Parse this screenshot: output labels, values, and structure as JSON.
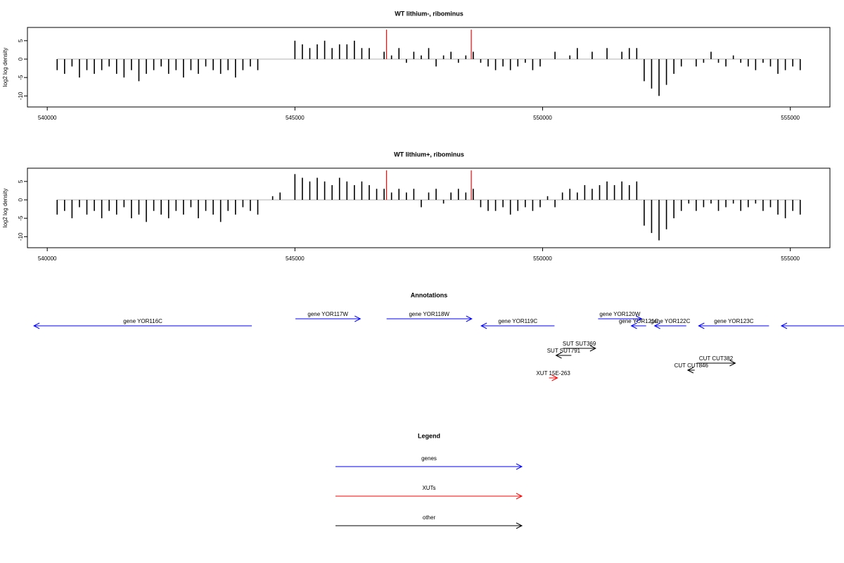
{
  "chart_data": [
    {
      "type": "bar",
      "title": "WT lithium-, ribominus",
      "y_label": "log2 log density",
      "xlim": [
        539600,
        555800
      ],
      "xticks": [
        540000,
        545000,
        550000,
        555000
      ],
      "ylim": [
        -13,
        8.6
      ],
      "yticks": [
        5,
        0,
        -5,
        -10
      ],
      "x": [
        540200,
        540350,
        540500,
        540650,
        540800,
        540950,
        541100,
        541250,
        541400,
        541550,
        541700,
        541850,
        542000,
        542150,
        542300,
        542450,
        542600,
        542750,
        542900,
        543050,
        543200,
        543350,
        543500,
        543650,
        543800,
        543950,
        544100,
        544250,
        544400,
        544550,
        544700,
        544850,
        545000,
        545150,
        545300,
        545450,
        545600,
        545750,
        545900,
        546050,
        546200,
        546350,
        546500,
        546650,
        546800,
        546950,
        547100,
        547250,
        547400,
        547550,
        547700,
        547850,
        548000,
        548150,
        548300,
        548450,
        548600,
        548750,
        548900,
        549050,
        549200,
        549350,
        549500,
        549650,
        549800,
        549950,
        550100,
        550250,
        550400,
        550550,
        550700,
        550850,
        551000,
        551150,
        551300,
        551450,
        551600,
        551750,
        551900,
        552050,
        552200,
        552350,
        552500,
        552650,
        552800,
        552950,
        553100,
        553250,
        553400,
        553550,
        553700,
        553850,
        554000,
        554150,
        554300,
        554450,
        554600,
        554750,
        554900,
        555050,
        555200
      ],
      "series": [
        {
          "color": "#000000",
          "values": [
            -3,
            -4,
            -2,
            -5,
            -3,
            -4,
            -3,
            -2,
            -4,
            -5,
            -3,
            -6,
            -4,
            -3,
            -2,
            -4,
            -3,
            -5,
            -3,
            -4,
            -2,
            -3,
            -4,
            -3,
            -5,
            -3,
            -2,
            -3,
            0,
            0,
            0,
            0,
            5,
            4,
            3,
            4,
            5,
            3,
            4,
            4,
            5,
            3,
            3,
            0,
            2,
            1,
            3,
            -1,
            2,
            1,
            3,
            -2,
            1,
            2,
            -1,
            1,
            2,
            -1,
            -2,
            -3,
            -2,
            -3,
            -2,
            -1,
            -3,
            -2,
            0,
            2,
            0,
            1,
            3,
            0,
            2,
            0,
            3,
            0,
            2,
            3,
            3,
            -6,
            -8,
            -10,
            -7,
            -4,
            -2,
            0,
            -2,
            -1,
            2,
            -1,
            -2,
            1,
            -1,
            -2,
            -3,
            -1,
            -2,
            -4,
            -3,
            -2,
            -3
          ]
        }
      ],
      "highlights": {
        "color": "#ff0000",
        "x": [
          546850,
          548560
        ],
        "values": [
          8,
          8
        ]
      }
    },
    {
      "type": "bar",
      "title": "WT lithium+, ribominus",
      "y_label": "log2 log density",
      "xlim": [
        539600,
        555800
      ],
      "xticks": [
        540000,
        545000,
        550000,
        555000
      ],
      "ylim": [
        -13,
        8.6
      ],
      "yticks": [
        5,
        0,
        -5,
        -10
      ],
      "x": [
        540200,
        540350,
        540500,
        540650,
        540800,
        540950,
        541100,
        541250,
        541400,
        541550,
        541700,
        541850,
        542000,
        542150,
        542300,
        542450,
        542600,
        542750,
        542900,
        543050,
        543200,
        543350,
        543500,
        543650,
        543800,
        543950,
        544100,
        544250,
        544400,
        544550,
        544700,
        544850,
        545000,
        545150,
        545300,
        545450,
        545600,
        545750,
        545900,
        546050,
        546200,
        546350,
        546500,
        546650,
        546800,
        546950,
        547100,
        547250,
        547400,
        547550,
        547700,
        547850,
        548000,
        548150,
        548300,
        548450,
        548600,
        548750,
        548900,
        549050,
        549200,
        549350,
        549500,
        549650,
        549800,
        549950,
        550100,
        550250,
        550400,
        550550,
        550700,
        550850,
        551000,
        551150,
        551300,
        551450,
        551600,
        551750,
        551900,
        552050,
        552200,
        552350,
        552500,
        552650,
        552800,
        552950,
        553100,
        553250,
        553400,
        553550,
        553700,
        553850,
        554000,
        554150,
        554300,
        554450,
        554600,
        554750,
        554900,
        555050,
        555200
      ],
      "series": [
        {
          "color": "#000000",
          "values": [
            -4,
            -3,
            -5,
            -2,
            -4,
            -3,
            -5,
            -3,
            -4,
            -2,
            -5,
            -4,
            -6,
            -3,
            -4,
            -5,
            -3,
            -4,
            -2,
            -5,
            -3,
            -4,
            -6,
            -3,
            -4,
            -2,
            -3,
            -4,
            0,
            1,
            2,
            0,
            7,
            6,
            5,
            6,
            5,
            4,
            6,
            5,
            4,
            5,
            4,
            3,
            3,
            2,
            3,
            2,
            3,
            -2,
            2,
            3,
            -1,
            2,
            3,
            2,
            3,
            -2,
            -3,
            -3,
            -2,
            -4,
            -3,
            -2,
            -3,
            -2,
            1,
            -2,
            2,
            3,
            2,
            4,
            3,
            4,
            5,
            4,
            5,
            4,
            5,
            -7,
            -9,
            -11,
            -8,
            -5,
            -3,
            -1,
            -3,
            -2,
            -1,
            -3,
            -2,
            -1,
            -3,
            -2,
            -1,
            -3,
            -2,
            -4,
            -5,
            -3,
            -4
          ]
        }
      ],
      "highlights": {
        "color": "#ff0000",
        "x": [
          546850,
          548560
        ],
        "values": [
          8,
          8
        ]
      }
    }
  ],
  "annotations": {
    "title": "Annotations",
    "features": [
      {
        "label": "gene YOR116C",
        "start": 539730,
        "end": 544130,
        "strand": "-",
        "color": "#0000ff"
      },
      {
        "label": "gene YOR117W",
        "start": 545010,
        "end": 546320,
        "strand": "+",
        "color": "#0000ff"
      },
      {
        "label": "gene YOR118W",
        "start": 546850,
        "end": 548570,
        "strand": "+",
        "color": "#0000ff"
      },
      {
        "label": "gene YOR119C",
        "start": 548760,
        "end": 550240,
        "strand": "-",
        "color": "#0000ff"
      },
      {
        "label": "gene YOR120W",
        "start": 551120,
        "end": 552000,
        "strand": "+",
        "color": "#0000ff"
      },
      {
        "label": "gene YOR121C",
        "start": 551790,
        "end": 552090,
        "strand": "-",
        "color": "#0000ff"
      },
      {
        "label": "gene YOR122C",
        "start": 552260,
        "end": 552900,
        "strand": "-",
        "color": "#0000ff"
      },
      {
        "label": "gene YOR123C",
        "start": 553150,
        "end": 554570,
        "strand": "-",
        "color": "#0000ff"
      },
      {
        "start": 554820,
        "end": 556100,
        "strand": "-",
        "color": "#0000ff"
      },
      {
        "label": "SUT SUT369",
        "start": 550410,
        "end": 551070,
        "strand": "+",
        "color": "#000000"
      },
      {
        "label": "SUT SUT791",
        "start": 550270,
        "end": 550580,
        "strand": "-",
        "color": "#000000"
      },
      {
        "label": "CUT CUT382",
        "start": 553110,
        "end": 553890,
        "strand": "+",
        "color": "#000000"
      },
      {
        "label": "CUT CUT846",
        "start": 552930,
        "end": 553070,
        "strand": "-",
        "color": "#000000"
      },
      {
        "label": "XUT 15E-263",
        "start": 550130,
        "end": 550300,
        "strand": "+",
        "color": "#ff0000"
      }
    ]
  },
  "legend": {
    "title": "Legend",
    "items": [
      {
        "label": "genes",
        "color": "#0000ff"
      },
      {
        "label": "XUTs",
        "color": "#ff0000"
      },
      {
        "label": "other",
        "color": "#000000"
      }
    ]
  }
}
